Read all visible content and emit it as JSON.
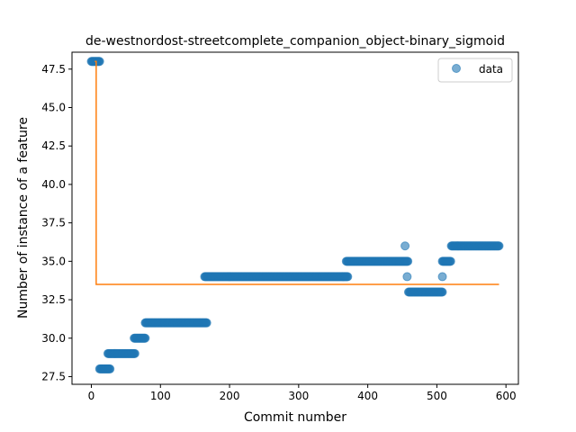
{
  "chart_data": {
    "type": "scatter",
    "title": "de-westnordost-streetcomplete_companion_object-binary_sigmoid",
    "xlabel": "Commit number",
    "ylabel": "Number of instance of a feature",
    "xlim": [
      -28,
      618
    ],
    "ylim": [
      27.0,
      48.6
    ],
    "xticks": [
      0,
      100,
      200,
      300,
      400,
      500,
      600
    ],
    "yticks": [
      27.5,
      30.0,
      32.5,
      35.0,
      37.5,
      40.0,
      42.5,
      45.0,
      47.5
    ],
    "ytick_labels": [
      "27.5",
      "30.0",
      "32.5",
      "35.0",
      "37.5",
      "40.0",
      "42.5",
      "45.0",
      "47.5"
    ],
    "legend": {
      "position": "top-right",
      "entries": [
        "data"
      ]
    },
    "grid": false,
    "colors": {
      "data": "#1f77b4",
      "fit": "#ff7f0e"
    },
    "series": [
      {
        "name": "data",
        "kind": "scatter",
        "segments": [
          {
            "x_start": 0,
            "x_end": 12,
            "y": 48
          },
          {
            "x_start": 12,
            "x_end": 27,
            "y": 28
          },
          {
            "x_start": 24,
            "x_end": 63,
            "y": 29
          },
          {
            "x_start": 62,
            "x_end": 78,
            "y": 30
          },
          {
            "x_start": 78,
            "x_end": 167,
            "y": 31
          },
          {
            "x_start": 164,
            "x_end": 371,
            "y": 34
          },
          {
            "x_start": 369,
            "x_end": 458,
            "y": 35
          },
          {
            "x_start": 459,
            "x_end": 508,
            "y": 33
          },
          {
            "x_start": 508,
            "x_end": 520,
            "y": 35
          },
          {
            "x_start": 521,
            "x_end": 590,
            "y": 36
          }
        ],
        "points": [
          {
            "x": 454,
            "y": 36
          },
          {
            "x": 457,
            "y": 34
          },
          {
            "x": 508,
            "y": 34
          }
        ]
      },
      {
        "name": "",
        "kind": "line",
        "x": [
          5,
          7,
          7,
          590
        ],
        "y": [
          48,
          48,
          33.5,
          33.5
        ]
      }
    ]
  }
}
